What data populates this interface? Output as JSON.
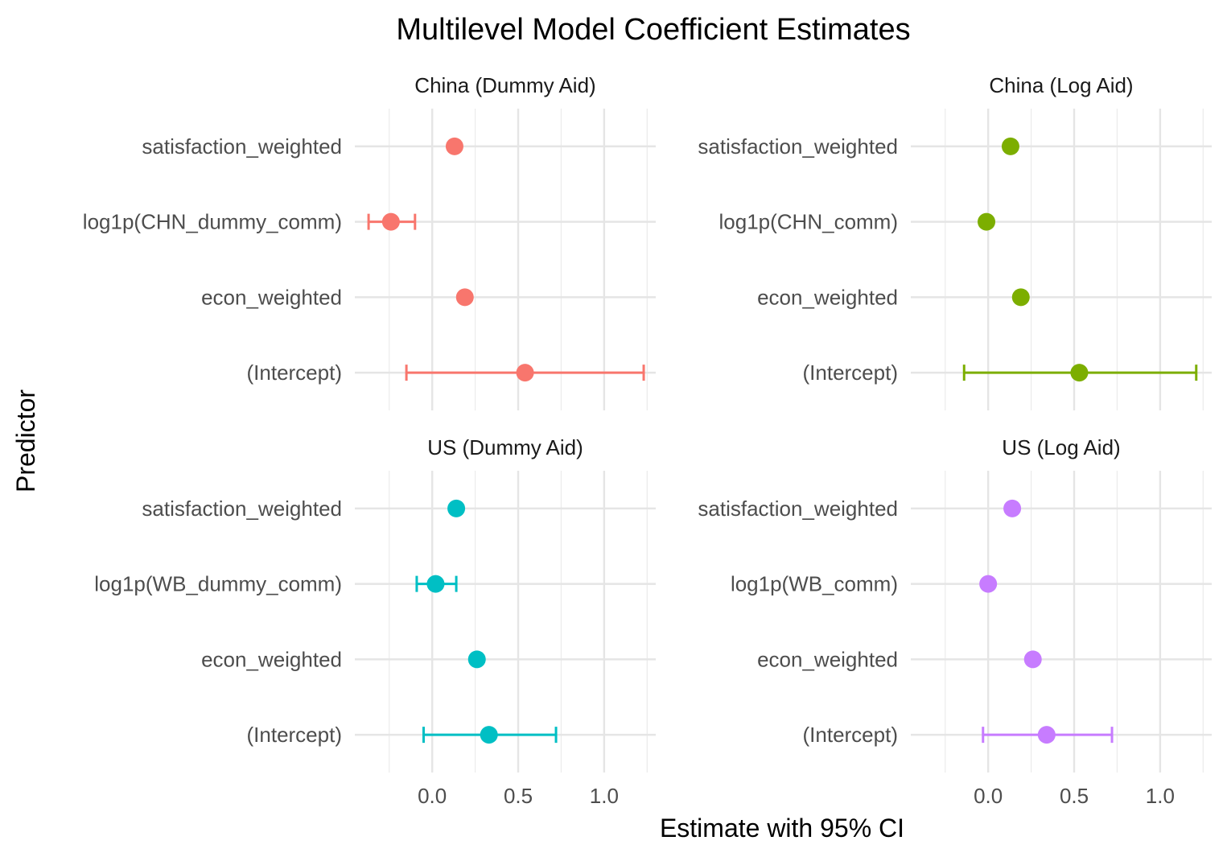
{
  "chart_data": {
    "type": "dot-errorbar",
    "title": "Multilevel Model Coefficient Estimates",
    "xlabel": "Estimate with 95% CI",
    "ylabel": "Predictor",
    "xlim": [
      -0.45,
      1.3
    ],
    "x_ticks": [
      0.0,
      0.5,
      1.0
    ],
    "x_tick_labels": [
      "0.0",
      "0.5",
      "1.0"
    ],
    "grid": true,
    "legend": "none",
    "panels": [
      {
        "name": "China (Dummy Aid)",
        "color": "#F8766D",
        "predictors": [
          "satisfaction_weighted",
          "log1p(CHN_dummy_comm)",
          "econ_weighted",
          "(Intercept)"
        ],
        "estimates": [
          0.13,
          -0.24,
          0.19,
          0.54
        ],
        "ci_low": [
          0.13,
          -0.37,
          0.19,
          -0.15
        ],
        "ci_high": [
          0.13,
          -0.1,
          0.19,
          1.23
        ]
      },
      {
        "name": "China (Log Aid)",
        "color": "#7CAE00",
        "predictors": [
          "satisfaction_weighted",
          "log1p(CHN_comm)",
          "econ_weighted",
          "(Intercept)"
        ],
        "estimates": [
          0.13,
          -0.01,
          0.19,
          0.53
        ],
        "ci_low": [
          0.13,
          -0.01,
          0.19,
          -0.14
        ],
        "ci_high": [
          0.13,
          -0.01,
          0.19,
          1.21
        ]
      },
      {
        "name": "US (Dummy Aid)",
        "color": "#00BFC4",
        "predictors": [
          "satisfaction_weighted",
          "log1p(WB_dummy_comm)",
          "econ_weighted",
          "(Intercept)"
        ],
        "estimates": [
          0.14,
          0.02,
          0.26,
          0.33
        ],
        "ci_low": [
          0.14,
          -0.09,
          0.26,
          -0.05
        ],
        "ci_high": [
          0.14,
          0.14,
          0.26,
          0.72
        ]
      },
      {
        "name": "US (Log Aid)",
        "color": "#C77CFF",
        "predictors": [
          "satisfaction_weighted",
          "log1p(WB_comm)",
          "econ_weighted",
          "(Intercept)"
        ],
        "estimates": [
          0.14,
          0.0,
          0.26,
          0.34
        ],
        "ci_low": [
          0.14,
          0.0,
          0.26,
          -0.03
        ],
        "ci_high": [
          0.14,
          0.0,
          0.26,
          0.72
        ]
      }
    ]
  }
}
